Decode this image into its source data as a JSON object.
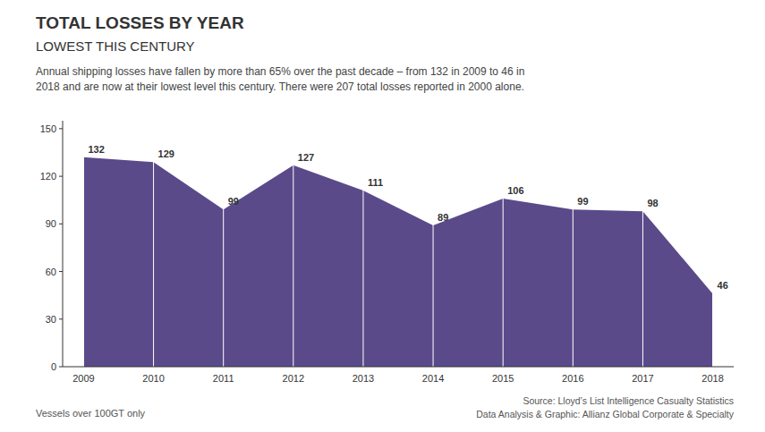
{
  "chart_data": {
    "type": "area",
    "title": "TOTAL LOSSES BY YEAR",
    "subtitle": "LOWEST THIS CENTURY",
    "annotations": [
      "Annual shipping losses have fallen by more than 65% over the past decade – from 132 in 2009 to 46 in\n2018 and are now at their lowest level this century. There were 207 total losses reported in 2000 alone.",
      "Vessels over 100GT only",
      "Source: Lloyd’s List Intelligence Casualty Statistics",
      "Data Analysis & Graphic: Allianz Global Corporate & Specialty"
    ],
    "categories": [
      "2009",
      "2010",
      "2011",
      "2012",
      "2013",
      "2014",
      "2015",
      "2016",
      "2017",
      "2018"
    ],
    "values": [
      132,
      129,
      99,
      127,
      111,
      89,
      106,
      99,
      98,
      46
    ],
    "color": "#5B4A8A",
    "ylim": [
      0,
      155
    ],
    "yticks": [
      0,
      30,
      60,
      90,
      120,
      150
    ],
    "grid": true,
    "data_labels": true
  }
}
